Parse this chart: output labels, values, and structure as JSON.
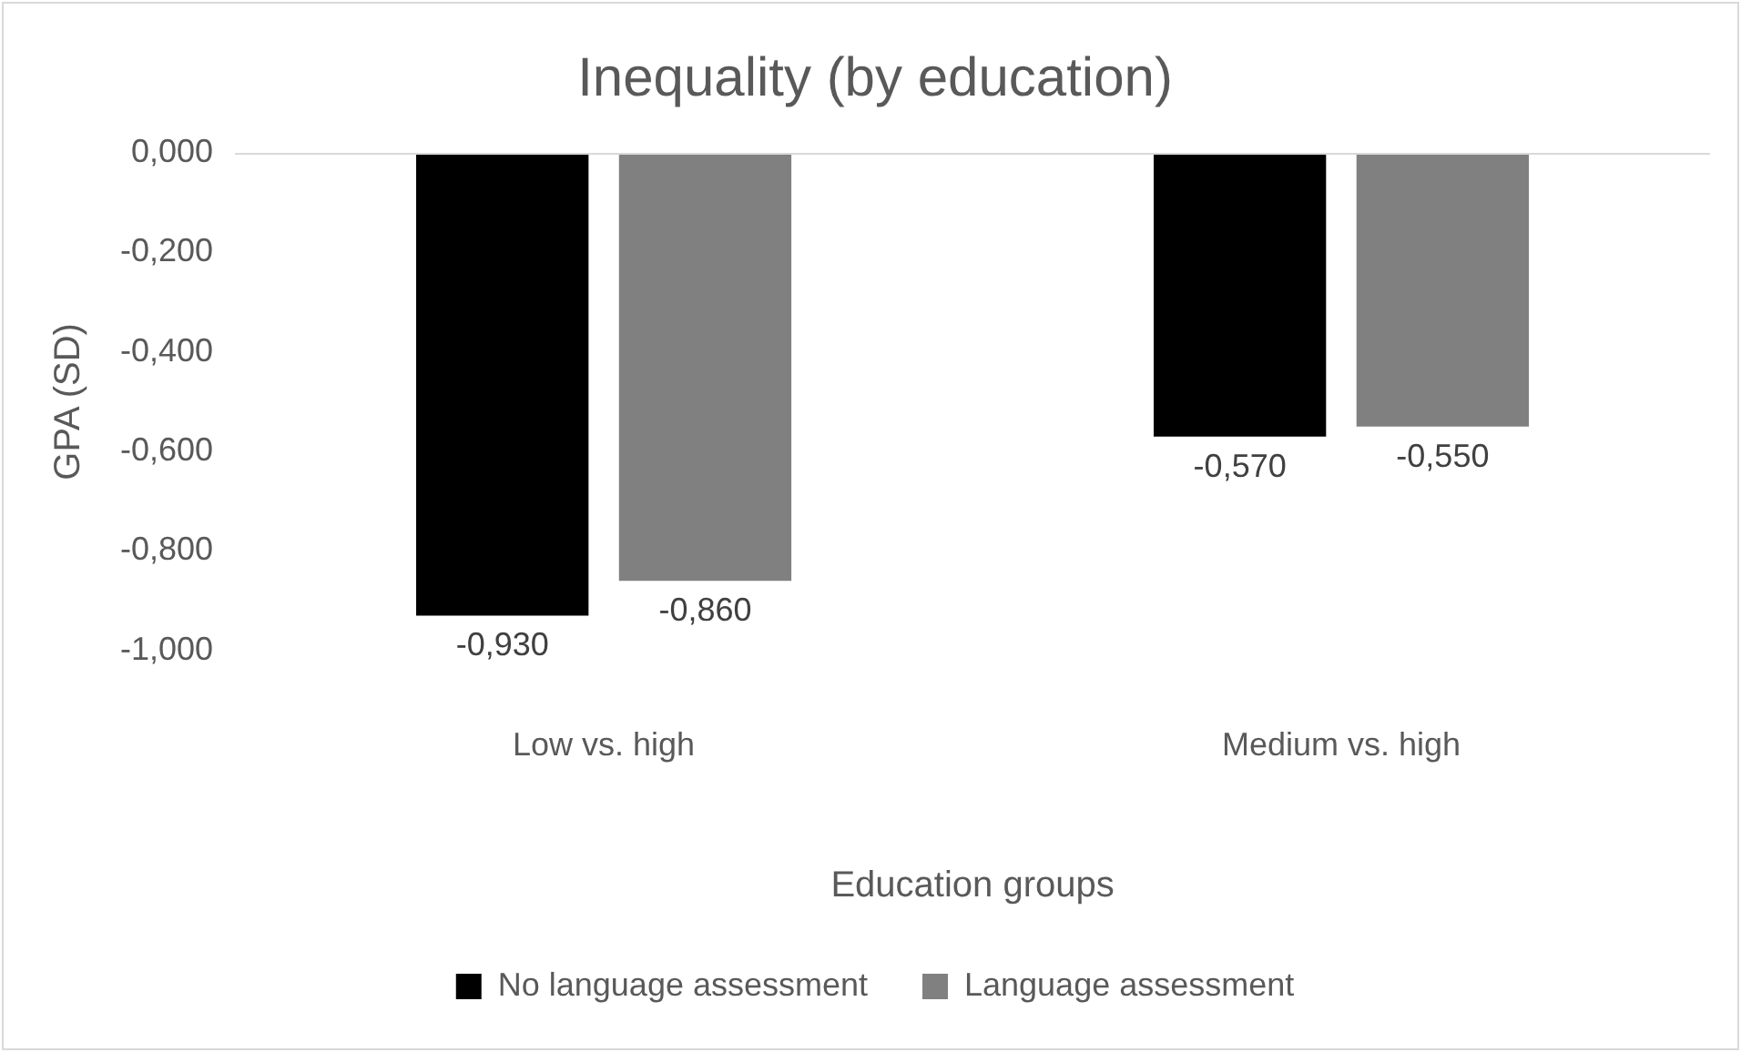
{
  "chart_data": {
    "type": "bar",
    "title": "Inequality (by education)",
    "xlabel": "Education groups",
    "ylabel": "GPA (SD)",
    "categories": [
      "Low vs. high",
      "Medium vs. high"
    ],
    "series": [
      {
        "name": "No language assessment",
        "color": "#000000",
        "values": [
          -0.93,
          -0.57
        ],
        "value_labels": [
          "-0,930",
          "-0,570"
        ]
      },
      {
        "name": "Language assessment",
        "color": "#808080",
        "values": [
          -0.86,
          -0.55
        ],
        "value_labels": [
          "-0,860",
          "-0,550"
        ]
      }
    ],
    "ylim": [
      -1,
      0
    ],
    "yticks": [
      {
        "value": -1,
        "label": "-1,000"
      },
      {
        "value": -0.8,
        "label": "-0,800"
      },
      {
        "value": -0.6,
        "label": "-0,600"
      },
      {
        "value": -0.4,
        "label": "-0,400"
      },
      {
        "value": -0.2,
        "label": "-0,200"
      },
      {
        "value": 0,
        "label": "0,000"
      }
    ],
    "grid": false,
    "legend": "bottom"
  }
}
